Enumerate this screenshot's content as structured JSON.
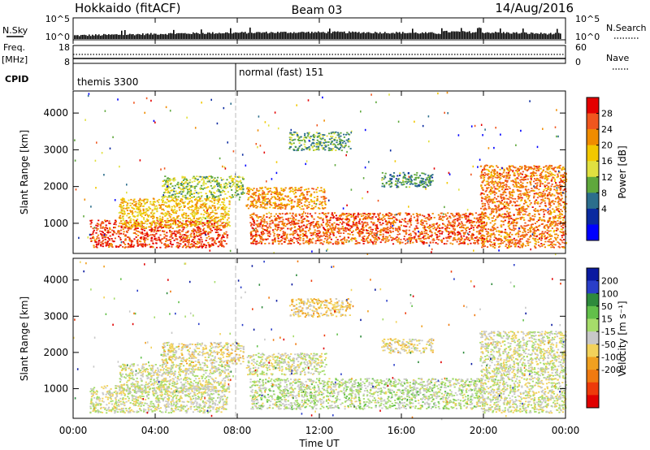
{
  "header": {
    "station": "Hokkaido (fitACF)",
    "beam": "Beam 03",
    "date": "14/Aug/2016"
  },
  "sky_panel": {
    "left_label": "N.Sky",
    "left_ticks": [
      "10^5",
      "10^0"
    ],
    "right_ticks": [
      "10^5",
      "10^0"
    ],
    "right_label": "N.Search"
  },
  "freq_panel": {
    "left_label_top": "Freq.",
    "left_label_unit": "[MHz]",
    "left_ticks": [
      "18",
      "8"
    ],
    "right_ticks": [
      "60",
      "0"
    ],
    "right_label": "Nave"
  },
  "cpid_panel": {
    "label": "CPID",
    "modes": [
      {
        "name": "themis 3300",
        "start_hour": 0
      },
      {
        "name": "normal (fast) 151",
        "start_hour": 8
      }
    ]
  },
  "chart_data": [
    {
      "type": "heatmap",
      "ylabel": "Slant Range [km]",
      "yticks": [
        "4000",
        "3000",
        "2000",
        "1000"
      ],
      "ylim": [
        180,
        4600
      ],
      "colorbar_label": "Power [dB]",
      "colorbar_ticks": [
        "28",
        "24",
        "20",
        "16",
        "12",
        "8",
        "4"
      ],
      "colorbar_colors": [
        "#e40000",
        "#f0561e",
        "#f08c00",
        "#f2c800",
        "#e0e040",
        "#5fa83c",
        "#2c6e8c",
        "#0a2aa0",
        "#0000ff"
      ],
      "regions": [
        {
          "t": [
            0.8,
            7.5
          ],
          "r": [
            350,
            1100
          ],
          "level": 0.9
        },
        {
          "t": [
            2.2,
            7.6
          ],
          "r": [
            900,
            1700
          ],
          "level": 0.65
        },
        {
          "t": [
            4.3,
            8.3
          ],
          "r": [
            1700,
            2300
          ],
          "level": 0.45
        },
        {
          "t": [
            8.4,
            12.3
          ],
          "r": [
            1400,
            2000
          ],
          "level": 0.75
        },
        {
          "t": [
            8.6,
            20.0
          ],
          "r": [
            450,
            1300
          ],
          "level": 0.85
        },
        {
          "t": [
            10.5,
            13.5
          ],
          "r": [
            3000,
            3500
          ],
          "level": 0.35
        },
        {
          "t": [
            19.8,
            24.0
          ],
          "r": [
            350,
            2600
          ],
          "level": 0.8
        },
        {
          "t": [
            15.0,
            17.5
          ],
          "r": [
            2000,
            2400
          ],
          "level": 0.3
        }
      ]
    },
    {
      "type": "heatmap",
      "ylabel": "Slant Range [km]",
      "yticks": [
        "4000",
        "3000",
        "2000",
        "1000"
      ],
      "ylim": [
        180,
        4600
      ],
      "colorbar_label": "Velocity [m s⁻¹]",
      "colorbar_ticks": [
        "200",
        "100",
        "50",
        "15",
        "-15",
        "-50",
        "-100",
        "-200"
      ],
      "colorbar_colors": [
        "#0a1aa0",
        "#2a3ec8",
        "#2e8a3c",
        "#62c04a",
        "#a6dc6a",
        "#c8c8c8",
        "#f2d25a",
        "#f0a020",
        "#f07a10",
        "#ee3a0a",
        "#e00000"
      ],
      "xticks": [
        "00:00",
        "04:00",
        "08:00",
        "12:00",
        "16:00",
        "20:00",
        "00:00"
      ],
      "xlabel": "Time UT",
      "xlim": [
        0,
        24
      ],
      "regions": [
        {
          "t": [
            0.8,
            7.5
          ],
          "r": [
            350,
            1100
          ],
          "level": 0.5
        },
        {
          "t": [
            2.2,
            7.6
          ],
          "r": [
            900,
            1700
          ],
          "level": 0.5
        },
        {
          "t": [
            4.3,
            8.3
          ],
          "r": [
            1700,
            2300
          ],
          "level": 0.45
        },
        {
          "t": [
            8.4,
            12.3
          ],
          "r": [
            1400,
            2000
          ],
          "level": 0.5
        },
        {
          "t": [
            8.6,
            20.0
          ],
          "r": [
            450,
            1300
          ],
          "level": 0.55
        },
        {
          "t": [
            10.5,
            13.5
          ],
          "r": [
            3000,
            3500
          ],
          "level": 0.4
        },
        {
          "t": [
            19.8,
            24.0
          ],
          "r": [
            350,
            2600
          ],
          "level": 0.5
        },
        {
          "t": [
            15.0,
            17.5
          ],
          "r": [
            2000,
            2400
          ],
          "level": 0.45
        }
      ]
    }
  ]
}
